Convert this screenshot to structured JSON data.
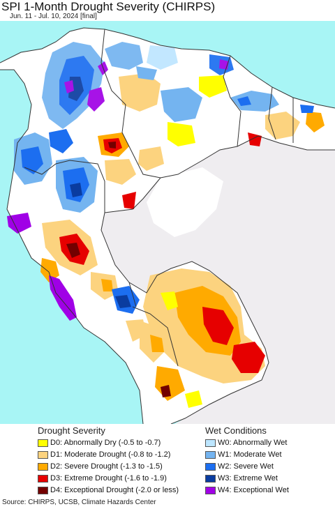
{
  "title": "SPI 1-Month Drought Severity (CHIRPS)",
  "subtitle": "Jun. 11 - Jul. 10, 2024 [final]",
  "colors": {
    "ocean": "#a8f5f5",
    "land": "#ffffff",
    "outside": "#efedf0",
    "border": "#333333"
  },
  "legend": {
    "drought": {
      "heading": "Drought Severity",
      "items": [
        {
          "label": "D0: Abnormally Dry (-0.5 to -0.7)",
          "color": "#ffff00"
        },
        {
          "label": "D1: Moderate Drought (-0.8 to -1.2)",
          "color": "#fcd37f"
        },
        {
          "label": "D2: Severe Drought (-1.3 to -1.5)",
          "color": "#ffaa00"
        },
        {
          "label": "D3: Extreme Drought (-1.6 to -1.9)",
          "color": "#e60000"
        },
        {
          "label": "D4: Exceptional Drought (-2.0 or less)",
          "color": "#730000"
        }
      ]
    },
    "wet": {
      "heading": "Wet Conditions",
      "items": [
        {
          "label": "W0: Abnormally Wet",
          "color": "#bde6ff"
        },
        {
          "label": "W1: Moderate Wet",
          "color": "#74b4f0"
        },
        {
          "label": "W2: Severe Wet",
          "color": "#1c6ef0"
        },
        {
          "label": "W3: Extreme Wet",
          "color": "#0a3ca0"
        },
        {
          "label": "W4: Exceptional Wet",
          "color": "#a000e6"
        }
      ]
    }
  },
  "source": "Source: CHIRPS, UCSB, Climate Hazards Center"
}
